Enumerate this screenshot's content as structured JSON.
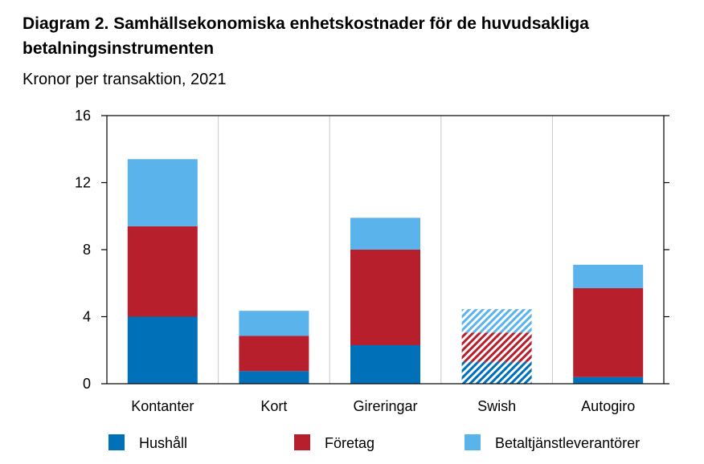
{
  "header": {
    "title": "Diagram 2. Samhällsekonomiska enhetskostnader för de huvudsakliga betalningsinstrumenten",
    "subtitle": "Kronor per transaktion, 2021"
  },
  "chart_data": {
    "type": "bar",
    "stacked": true,
    "categories": [
      "Kontanter",
      "Kort",
      "Gireringar",
      "Swish",
      "Autogiro"
    ],
    "series": [
      {
        "name": "Hushåll",
        "color": "#0070b8",
        "values": [
          4.0,
          0.75,
          2.3,
          1.3,
          0.4
        ]
      },
      {
        "name": "Företag",
        "color": "#b81f2d",
        "values": [
          5.4,
          2.1,
          5.7,
          1.75,
          5.3
        ]
      },
      {
        "name": "Betaltjänstleverantörer",
        "color": "#5ab3ea",
        "values": [
          4.0,
          1.5,
          1.9,
          1.4,
          1.4
        ]
      }
    ],
    "hatched_categories": [
      "Swish"
    ],
    "ylim": [
      0,
      16
    ],
    "yticks": [
      0,
      4,
      8,
      12,
      16
    ],
    "grid": "vertical",
    "legend": "bottom",
    "xlabel": "",
    "ylabel": ""
  }
}
